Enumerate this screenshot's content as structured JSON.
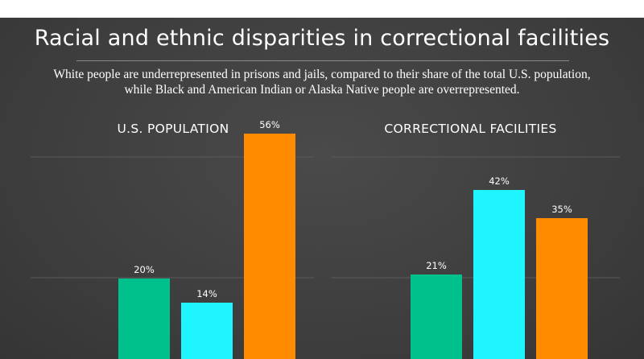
{
  "title": "Racial and ethnic disparities in correctional facilities",
  "subtitle": "White people are underrepresented in prisons and jails, compared to their share of the total U.S. population, while Black and American Indian or Alaska Native people are overrepresented.",
  "colors": {
    "background": "#3f3f3f",
    "gridline": "#5a5a5a",
    "series_green": "#00c08b",
    "series_cyan": "#1ff5ff",
    "series_orange": "#ff8c00"
  },
  "chart_data": [
    {
      "type": "bar",
      "title": "U.S. POPULATION",
      "values": [
        20,
        14,
        56
      ],
      "labels": [
        "20%",
        "14%",
        "56%"
      ],
      "colors": [
        "#00c08b",
        "#1ff5ff",
        "#ff8c00"
      ],
      "ylim": [
        0,
        60
      ],
      "grid": true
    },
    {
      "type": "bar",
      "title": "CORRECTIONAL FACILITIES",
      "values": [
        21,
        42,
        35
      ],
      "labels": [
        "21%",
        "42%",
        "35%"
      ],
      "colors": [
        "#00c08b",
        "#1ff5ff",
        "#ff8c00"
      ],
      "ylim": [
        0,
        60
      ],
      "grid": true
    }
  ]
}
